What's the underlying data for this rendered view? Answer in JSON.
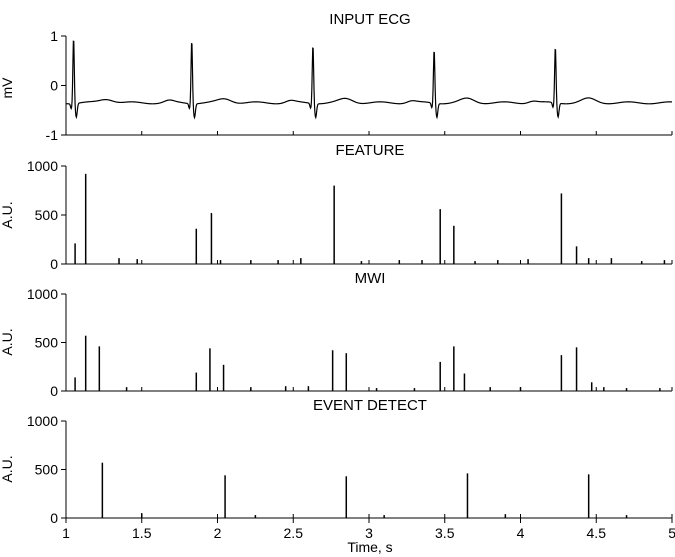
{
  "chart_data": [
    {
      "type": "line",
      "title": "INPUT ECG",
      "ylabel": "mV",
      "xlim": [
        1,
        5
      ],
      "ylim": [
        -1,
        1
      ],
      "yticks": [
        1,
        0,
        -1
      ],
      "baseline": -0.35,
      "r_peaks": [
        {
          "x": 1.05,
          "y": 0.98
        },
        {
          "x": 1.83,
          "y": 0.93
        },
        {
          "x": 2.63,
          "y": 0.83
        },
        {
          "x": 3.43,
          "y": 0.73
        },
        {
          "x": 4.23,
          "y": 0.78
        }
      ]
    },
    {
      "type": "bar",
      "title": "FEATURE",
      "ylabel": "A.U.",
      "xlim": [
        1,
        5
      ],
      "ylim": [
        0,
        1000
      ],
      "yticks": [
        1000,
        500,
        0
      ],
      "x": [
        1.06,
        1.13,
        1.86,
        1.96,
        2.02,
        2.77,
        3.47,
        3.56,
        4.27,
        4.37,
        1.35,
        1.47,
        2.22,
        2.4,
        2.55,
        2.95,
        3.2,
        3.35,
        3.7,
        3.85,
        4.05,
        4.45,
        4.6,
        4.8,
        4.95
      ],
      "values": [
        210,
        920,
        360,
        520,
        40,
        800,
        560,
        390,
        720,
        180,
        60,
        50,
        40,
        40,
        60,
        30,
        40,
        40,
        30,
        40,
        50,
        60,
        60,
        30,
        40
      ]
    },
    {
      "type": "bar",
      "title": "MWI",
      "ylabel": "A.U.",
      "xlim": [
        1,
        5
      ],
      "ylim": [
        0,
        1000
      ],
      "yticks": [
        1000,
        500,
        0
      ],
      "x": [
        1.06,
        1.13,
        1.22,
        1.86,
        1.95,
        2.04,
        2.76,
        2.85,
        3.47,
        3.56,
        3.63,
        4.27,
        4.37,
        4.47,
        1.4,
        2.22,
        2.45,
        2.6,
        3.05,
        3.3,
        3.8,
        4.0,
        4.55,
        4.7,
        4.92
      ],
      "values": [
        140,
        570,
        460,
        190,
        440,
        270,
        420,
        390,
        300,
        460,
        180,
        370,
        450,
        90,
        40,
        40,
        50,
        50,
        30,
        30,
        40,
        40,
        40,
        30,
        30
      ]
    },
    {
      "type": "bar",
      "title": "EVENT DETECT",
      "ylabel": "A.U.",
      "xlim": [
        1,
        5
      ],
      "ylim": [
        0,
        1000
      ],
      "yticks": [
        1000,
        500,
        0
      ],
      "xticks": [
        1,
        1.5,
        2,
        2.5,
        3,
        3.5,
        4,
        4.5,
        5
      ],
      "xtick_labels": [
        "1",
        "1.5",
        "2",
        "2.5",
        "3",
        "3.5",
        "4",
        "4.5",
        "5"
      ],
      "xlabel": "Time, s",
      "x": [
        1.24,
        2.05,
        2.85,
        3.65,
        4.45,
        1.5,
        2.25,
        3.1,
        3.9,
        4.7
      ],
      "values": [
        570,
        440,
        430,
        460,
        450,
        50,
        30,
        30,
        40,
        30
      ]
    }
  ]
}
